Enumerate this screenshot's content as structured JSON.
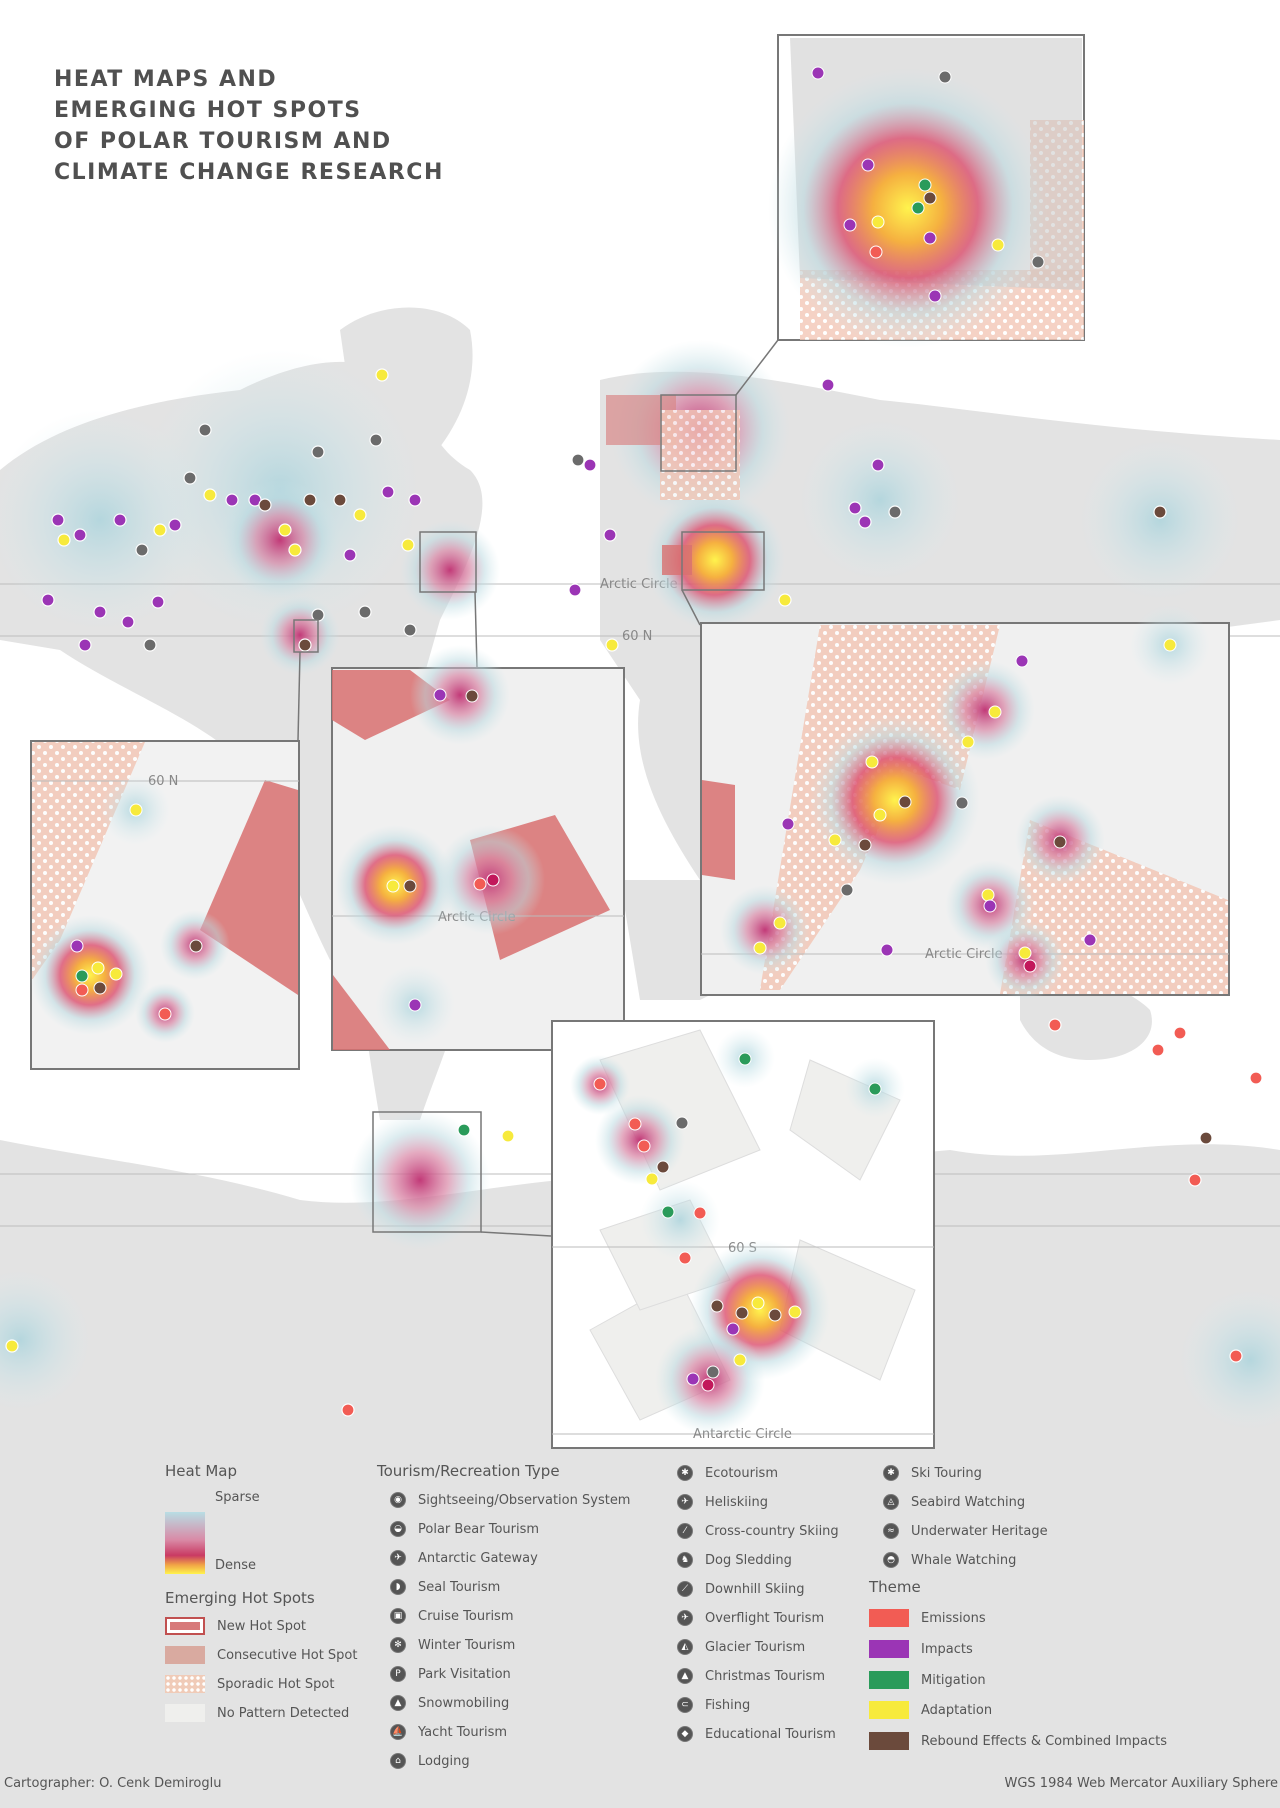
{
  "title": {
    "lines": [
      "HEAT MAPS AND",
      "EMERGING HOT SPOTS",
      "OF POLAR TOURISM AND",
      "CLIMATE CHANGE RESEARCH"
    ]
  },
  "map_labels": {
    "arctic_circle": "Arctic Circle",
    "lat_60n": "60 N",
    "lat_60s": "60 S",
    "antarctic_circle": "Antarctic Circle"
  },
  "legend": {
    "heat_map": {
      "heading": "Heat Map",
      "sparse": "Sparse",
      "dense": "Dense"
    },
    "hot_spots": {
      "heading": "Emerging Hot Spots",
      "items": [
        {
          "label": "New Hot Spot",
          "color": "#d77a7a"
        },
        {
          "label": "Consecutive Hot Spot",
          "color": "#d9aaa0"
        },
        {
          "label": "Sporadic Hot Spot",
          "color": "#f0cbb8"
        },
        {
          "label": "No Pattern Detected",
          "color": "#efefed"
        }
      ]
    },
    "tourism": {
      "heading": "Tourism/Recreation Type",
      "col1": [
        "Sightseeing/Observation System",
        "Polar Bear Tourism",
        "Antarctic Gateway",
        "Seal Tourism",
        "Cruise Tourism",
        "Winter Tourism",
        "Park Visitation",
        "Snowmobiling",
        "Yacht Tourism",
        "Lodging"
      ],
      "col2": [
        "Ecotourism",
        "Heliskiing",
        "Cross-country Skiing",
        "Dog Sledding",
        "Downhill Skiing",
        "Overflight Tourism",
        "Glacier Tourism",
        "Christmas Tourism",
        "Fishing",
        "Educational Tourism"
      ],
      "col3": [
        "Ski Touring",
        "Seabird Watching",
        "Underwater Heritage",
        "Whale Watching"
      ]
    },
    "theme": {
      "heading": "Theme",
      "items": [
        {
          "label": "Emissions",
          "color": "#f25c54"
        },
        {
          "label": "Impacts",
          "color": "#9b35b5"
        },
        {
          "label": "Mitigation",
          "color": "#2a9b5a"
        },
        {
          "label": "Adaptation",
          "color": "#f7ea3c"
        },
        {
          "label": "Rebound Effects & Combined Impacts",
          "color": "#6b4a3c"
        }
      ]
    }
  },
  "credits": {
    "cartographer": "Cartographer: O. Cenk Demiroglu",
    "projection": "WGS 1984 Web Mercator Auxiliary Sphere"
  }
}
